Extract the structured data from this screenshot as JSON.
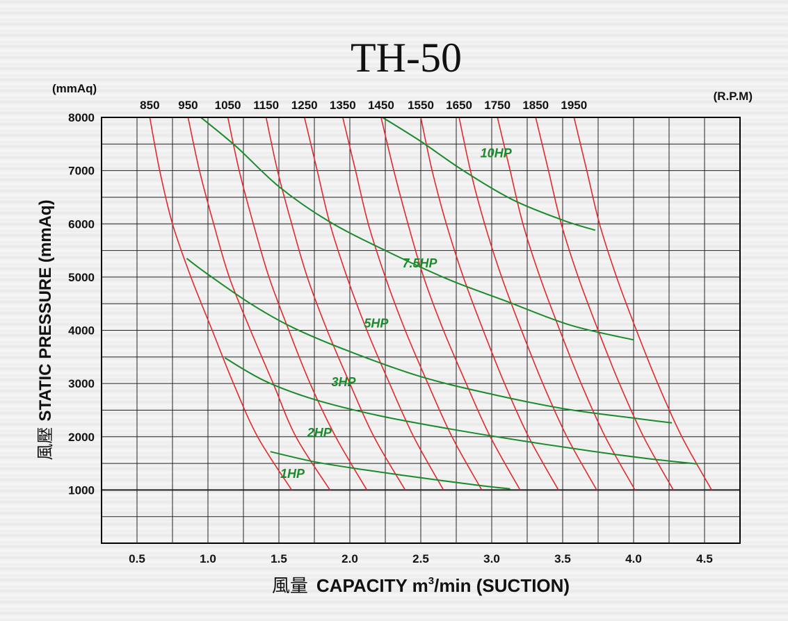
{
  "chart_data": {
    "type": "line",
    "title": "TH-50",
    "y_unit_top": "(mmAq)",
    "rpm_unit": "(R.P.M)",
    "ylabel": "STATIC PRESSURE (mmAq)",
    "ylabel_cn": "風壓",
    "xlabel_cn": "風量",
    "xlabel_main": "CAPACITY m",
    "xlabel_sup": "3",
    "xlabel_tail": "/min (SUCTION)",
    "xlim": [
      0.25,
      4.75
    ],
    "ylim": [
      0,
      8000
    ],
    "x_ticks": [
      "0.5",
      "1.0",
      "1.5",
      "2.0",
      "2.5",
      "3.0",
      "3.5",
      "4.0",
      "4.5"
    ],
    "y_ticks": [
      "1000",
      "2000",
      "3000",
      "4000",
      "5000",
      "6000",
      "7000",
      "8000"
    ],
    "grid": true,
    "rpm_labels": [
      "850",
      "950",
      "1050",
      "1150",
      "1250",
      "1350",
      "1450",
      "1550",
      "1650",
      "1750",
      "1850",
      "1950"
    ],
    "rpm_series": [
      {
        "name": "850",
        "points": [
          [
            0.59,
            8000
          ],
          [
            0.66,
            7000
          ],
          [
            0.75,
            6000
          ],
          [
            0.88,
            5000
          ],
          [
            1.03,
            4000
          ],
          [
            1.18,
            3000
          ],
          [
            1.35,
            2000
          ],
          [
            1.59,
            1000
          ]
        ]
      },
      {
        "name": "950",
        "points": [
          [
            0.86,
            8000
          ],
          [
            0.94,
            7000
          ],
          [
            1.04,
            6000
          ],
          [
            1.15,
            5000
          ],
          [
            1.3,
            4000
          ],
          [
            1.46,
            3000
          ],
          [
            1.62,
            2000
          ],
          [
            1.86,
            1000
          ]
        ]
      },
      {
        "name": "1050",
        "points": [
          [
            1.14,
            8000
          ],
          [
            1.22,
            7000
          ],
          [
            1.32,
            6000
          ],
          [
            1.43,
            5000
          ],
          [
            1.57,
            4000
          ],
          [
            1.72,
            3000
          ],
          [
            1.9,
            2000
          ],
          [
            2.12,
            1000
          ]
        ]
      },
      {
        "name": "1150",
        "points": [
          [
            1.41,
            8000
          ],
          [
            1.49,
            7000
          ],
          [
            1.59,
            6000
          ],
          [
            1.7,
            5000
          ],
          [
            1.84,
            4000
          ],
          [
            2.0,
            3000
          ],
          [
            2.17,
            2000
          ],
          [
            2.39,
            1000
          ]
        ]
      },
      {
        "name": "1250",
        "points": [
          [
            1.68,
            8000
          ],
          [
            1.77,
            7000
          ],
          [
            1.86,
            6000
          ],
          [
            1.98,
            5000
          ],
          [
            2.12,
            4000
          ],
          [
            2.28,
            3000
          ],
          [
            2.45,
            2000
          ],
          [
            2.66,
            1000
          ]
        ]
      },
      {
        "name": "1350",
        "points": [
          [
            1.95,
            8000
          ],
          [
            2.04,
            7000
          ],
          [
            2.13,
            6000
          ],
          [
            2.25,
            5000
          ],
          [
            2.39,
            4000
          ],
          [
            2.55,
            3000
          ],
          [
            2.72,
            2000
          ],
          [
            2.93,
            1000
          ]
        ]
      },
      {
        "name": "1450",
        "points": [
          [
            2.22,
            8000
          ],
          [
            2.31,
            7000
          ],
          [
            2.41,
            6000
          ],
          [
            2.52,
            5000
          ],
          [
            2.66,
            4000
          ],
          [
            2.82,
            3000
          ],
          [
            2.99,
            2000
          ],
          [
            3.2,
            1000
          ]
        ]
      },
      {
        "name": "1550",
        "points": [
          [
            2.5,
            8000
          ],
          [
            2.58,
            7000
          ],
          [
            2.68,
            6000
          ],
          [
            2.8,
            5000
          ],
          [
            2.94,
            4000
          ],
          [
            3.09,
            3000
          ],
          [
            3.26,
            2000
          ],
          [
            3.47,
            1000
          ]
        ]
      },
      {
        "name": "1650",
        "points": [
          [
            2.77,
            8000
          ],
          [
            2.85,
            7000
          ],
          [
            2.95,
            6000
          ],
          [
            3.07,
            5000
          ],
          [
            3.21,
            4000
          ],
          [
            3.36,
            3000
          ],
          [
            3.53,
            2000
          ],
          [
            3.74,
            1000
          ]
        ]
      },
      {
        "name": "1750",
        "points": [
          [
            3.04,
            8000
          ],
          [
            3.13,
            7000
          ],
          [
            3.22,
            6000
          ],
          [
            3.34,
            5000
          ],
          [
            3.48,
            4000
          ],
          [
            3.63,
            3000
          ],
          [
            3.8,
            2000
          ],
          [
            4.01,
            1000
          ]
        ]
      },
      {
        "name": "1850",
        "points": [
          [
            3.31,
            8000
          ],
          [
            3.4,
            7000
          ],
          [
            3.49,
            6000
          ],
          [
            3.61,
            5000
          ],
          [
            3.75,
            4000
          ],
          [
            3.9,
            3000
          ],
          [
            4.07,
            2000
          ],
          [
            4.28,
            1000
          ]
        ]
      },
      {
        "name": "1950",
        "points": [
          [
            3.58,
            8000
          ],
          [
            3.67,
            7000
          ],
          [
            3.76,
            6000
          ],
          [
            3.88,
            5000
          ],
          [
            4.02,
            4000
          ],
          [
            4.17,
            3000
          ],
          [
            4.34,
            2000
          ],
          [
            4.55,
            1000
          ]
        ]
      }
    ],
    "hp_series": [
      {
        "name": "10HP",
        "points": [
          [
            2.23,
            8000
          ],
          [
            2.5,
            7550
          ],
          [
            2.8,
            7000
          ],
          [
            3.15,
            6450
          ],
          [
            3.5,
            6070
          ],
          [
            3.73,
            5880
          ]
        ],
        "label_at": [
          2.92,
          7250
        ]
      },
      {
        "name": "7.5HP",
        "points": [
          [
            0.95,
            8000
          ],
          [
            1.2,
            7450
          ],
          [
            1.5,
            6700
          ],
          [
            1.85,
            6050
          ],
          [
            2.25,
            5500
          ],
          [
            2.7,
            4950
          ],
          [
            3.1,
            4550
          ],
          [
            3.55,
            4100
          ],
          [
            4.0,
            3820
          ]
        ],
        "label_at": [
          2.37,
          5180
        ]
      },
      {
        "name": "5HP",
        "points": [
          [
            0.85,
            5350
          ],
          [
            1.0,
            5050
          ],
          [
            1.3,
            4500
          ],
          [
            1.6,
            4050
          ],
          [
            2.0,
            3600
          ],
          [
            2.5,
            3130
          ],
          [
            3.0,
            2800
          ],
          [
            3.5,
            2530
          ],
          [
            4.0,
            2350
          ],
          [
            4.27,
            2260
          ]
        ],
        "label_at": [
          2.1,
          4050
        ]
      },
      {
        "name": "3HP",
        "points": [
          [
            1.12,
            3480
          ],
          [
            1.4,
            3050
          ],
          [
            1.75,
            2700
          ],
          [
            2.2,
            2400
          ],
          [
            2.7,
            2150
          ],
          [
            3.2,
            1930
          ],
          [
            3.7,
            1730
          ],
          [
            4.1,
            1590
          ],
          [
            4.45,
            1490
          ]
        ],
        "label_at": [
          1.87,
          2950
        ]
      },
      {
        "name": "2HP",
        "points": [
          [
            1.44,
            1720
          ],
          [
            1.75,
            1530
          ],
          [
            2.1,
            1380
          ],
          [
            2.5,
            1230
          ],
          [
            2.9,
            1090
          ],
          [
            3.13,
            1020
          ]
        ],
        "label_at": [
          1.7,
          2000
        ]
      },
      {
        "name": "1HP",
        "points": [],
        "label_at": [
          1.51,
          1230
        ]
      }
    ]
  }
}
